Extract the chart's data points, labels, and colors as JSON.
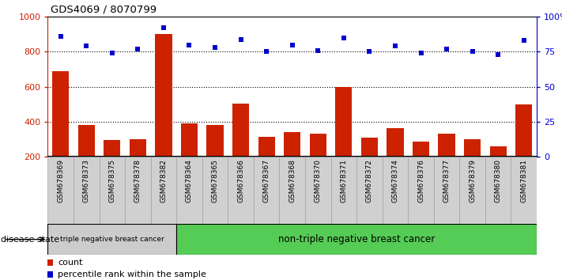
{
  "title": "GDS4069 / 8070799",
  "samples": [
    "GSM678369",
    "GSM678373",
    "GSM678375",
    "GSM678378",
    "GSM678382",
    "GSM678364",
    "GSM678365",
    "GSM678366",
    "GSM678367",
    "GSM678368",
    "GSM678370",
    "GSM678371",
    "GSM678372",
    "GSM678374",
    "GSM678376",
    "GSM678377",
    "GSM678379",
    "GSM678380",
    "GSM678381"
  ],
  "counts": [
    690,
    380,
    295,
    300,
    900,
    390,
    380,
    505,
    315,
    340,
    330,
    600,
    310,
    365,
    285,
    330,
    300,
    260,
    500
  ],
  "percentiles": [
    86,
    79,
    74,
    77,
    92,
    80,
    78,
    84,
    75,
    80,
    76,
    85,
    75,
    79,
    74,
    77,
    75,
    73,
    83
  ],
  "bar_color": "#cc2200",
  "dot_color": "#0000cc",
  "ylim_left": [
    200,
    1000
  ],
  "ylim_right": [
    0,
    100
  ],
  "yticks_left": [
    200,
    400,
    600,
    800,
    1000
  ],
  "yticks_right": [
    0,
    25,
    50,
    75,
    100
  ],
  "ytick_labels_right": [
    "0",
    "25",
    "50",
    "75",
    "100%"
  ],
  "grid_values": [
    400,
    600,
    800
  ],
  "triple_neg_count": 5,
  "group1_label": "triple negative breast cancer",
  "group2_label": "non-triple negative breast cancer",
  "disease_state_label": "disease state",
  "legend_count": "count",
  "legend_percentile": "percentile rank within the sample",
  "bg_color": "#ffffff",
  "group1_bg": "#cccccc",
  "group2_bg": "#55cc55",
  "cell_bg": "#d0d0d0"
}
